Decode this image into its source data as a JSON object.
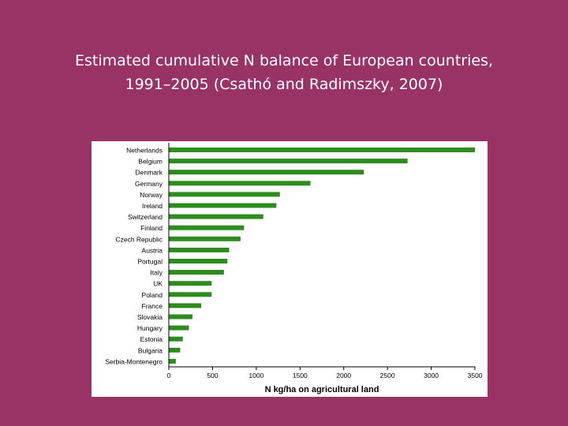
{
  "slide": {
    "title_line1": "Estimated cumulative N balance of European countries,",
    "title_line2": "1991–2005 (Csathó and Radimszky, 2007)"
  },
  "chart_data": {
    "type": "bar",
    "orientation": "horizontal",
    "xlabel": "N kg/ha on agricultural land",
    "ylabel": "",
    "xlim": [
      0,
      3500
    ],
    "xticks": [
      0,
      500,
      1000,
      1500,
      2000,
      2500,
      3000,
      3500
    ],
    "grid": false,
    "bar_color": "#2e8b1e",
    "categories": [
      "Netherlands",
      "Belgium",
      "Denmark",
      "Germany",
      "Norway",
      "Ireland",
      "Switzerland",
      "Finland",
      "Czech Republic",
      "Austria",
      "Portugal",
      "Italy",
      "UK",
      "Poland",
      "France",
      "Slovakia",
      "Hungary",
      "Estonia",
      "Bulgaria",
      "Serbia-Montenegro"
    ],
    "values": [
      3500,
      2730,
      2230,
      1620,
      1270,
      1230,
      1080,
      860,
      820,
      690,
      670,
      630,
      490,
      490,
      370,
      270,
      230,
      160,
      130,
      80
    ]
  }
}
